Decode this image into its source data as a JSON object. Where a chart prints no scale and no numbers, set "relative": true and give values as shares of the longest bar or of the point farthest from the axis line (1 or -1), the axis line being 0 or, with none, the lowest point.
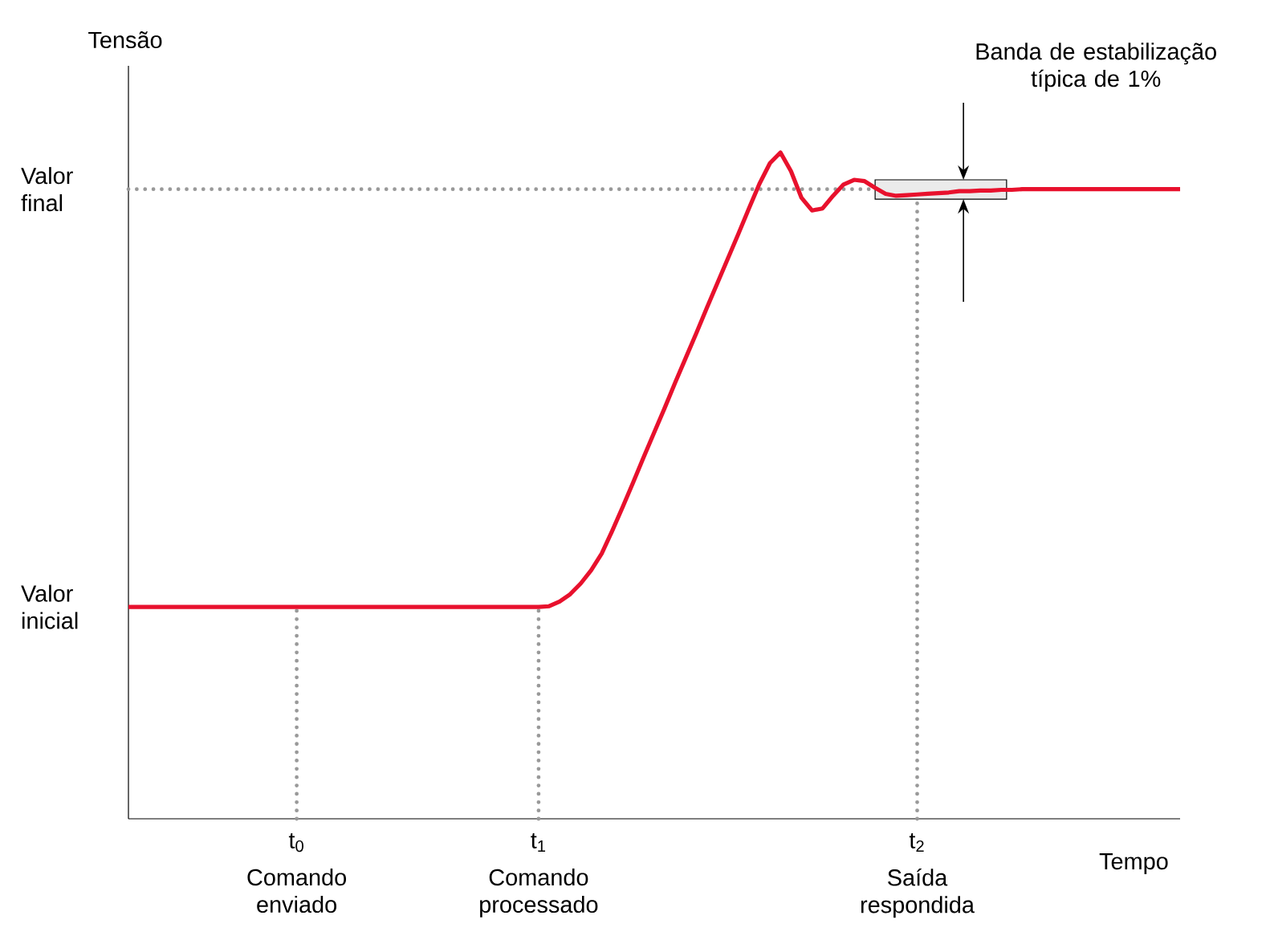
{
  "chart_data": {
    "type": "line",
    "relative": true,
    "xlabel": "Tempo",
    "ylabel": "Tensão",
    "categories": [
      null,
      null,
      null,
      null,
      null,
      null,
      null,
      null,
      null,
      null,
      null,
      null,
      null,
      null,
      null,
      null,
      "t$_{0}$",
      null,
      null,
      null,
      null,
      null,
      null,
      null,
      null,
      null,
      null,
      null,
      null,
      null,
      null,
      null,
      null,
      null,
      null,
      null,
      null,
      null,
      null,
      "t$_{1}$",
      null,
      null,
      null,
      null,
      null,
      null,
      null,
      null,
      null,
      null,
      null,
      null,
      null,
      null,
      null,
      null,
      null,
      null,
      null,
      null,
      null,
      null,
      null,
      null,
      null,
      null,
      null,
      null,
      null,
      null,
      null,
      null,
      null,
      null,
      null,
      "t$_{2}$",
      null,
      null,
      null,
      null,
      null,
      null,
      null,
      null,
      null,
      null,
      null,
      null,
      null,
      null,
      null,
      null,
      null,
      null,
      null,
      null,
      null,
      null,
      null,
      null,
      null
    ],
    "series": [
      {
        "color": "#e8112d",
        "line_style": "solid",
        "values": [
          0.318,
          0.318,
          0.318,
          0.318,
          0.318,
          0.318,
          0.318,
          0.318,
          0.318,
          0.318,
          0.318,
          0.318,
          0.318,
          0.318,
          0.318,
          0.318,
          0.318,
          0.318,
          0.318,
          0.318,
          0.318,
          0.318,
          0.318,
          0.318,
          0.318,
          0.318,
          0.318,
          0.318,
          0.318,
          0.318,
          0.318,
          0.318,
          0.318,
          0.318,
          0.318,
          0.318,
          0.318,
          0.318,
          0.318,
          0.318,
          0.319,
          0.326,
          0.337,
          0.353,
          0.373,
          0.398,
          0.432,
          0.468,
          0.505,
          0.543,
          0.58,
          0.617,
          0.655,
          0.692,
          0.729,
          0.767,
          0.804,
          0.841,
          0.878,
          0.916,
          0.953,
          0.984,
          1.0,
          0.972,
          0.932,
          0.913,
          0.916,
          0.935,
          0.952,
          0.959,
          0.957,
          0.947,
          0.938,
          0.935,
          0.936,
          0.937,
          0.938,
          0.939,
          0.94,
          0.942,
          0.942,
          0.943,
          0.943,
          0.944,
          0.944,
          0.945,
          0.945,
          0.945,
          0.945,
          0.945,
          0.945,
          0.945,
          0.945,
          0.945,
          0.945,
          0.945,
          0.945,
          0.945,
          0.945,
          0.945,
          0.945
        ]
      }
    ],
    "ref_lines": [
      {
        "axis": "y",
        "value": 0.945,
        "label": "Valor final",
        "color": "#999999",
        "line_style": "dotted"
      },
      {
        "axis": "x",
        "value": "t$_{0}$",
        "color": "#999999",
        "line_style": "dotted"
      },
      {
        "axis": "x",
        "value": "t$_{1}$",
        "color": "#999999",
        "line_style": "dotted"
      },
      {
        "axis": "x",
        "value": "t$_{2}$",
        "color": "#999999",
        "line_style": "dotted"
      }
    ],
    "bands": [
      {
        "axis": "y",
        "from": 0.93,
        "to": 0.959,
        "label": "Banda de estabilização típica de 1%",
        "color": "#ebebeb"
      }
    ],
    "annotations": [
      "Valor inicial",
      "Comando enviado",
      "Comando processado",
      "Saída respondida"
    ]
  }
}
